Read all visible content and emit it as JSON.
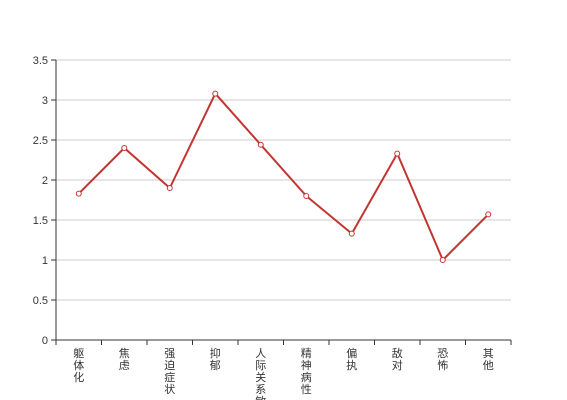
{
  "chart_data": {
    "type": "line",
    "title": "",
    "xlabel": "",
    "ylabel": "",
    "categories": [
      "躯体化",
      "焦虑",
      "强迫症状",
      "抑郁",
      "人际关系敏感",
      "精神病性",
      "偏执",
      "敌对",
      "恐怖",
      "其他"
    ],
    "series": [
      {
        "values": [
          1.83,
          2.4,
          1.9,
          3.08,
          2.44,
          1.8,
          1.33,
          2.33,
          1.0,
          1.57
        ]
      }
    ],
    "ylim": [
      0,
      3.5
    ],
    "yticks": [
      "0",
      "0.5",
      "1",
      "1.5",
      "2",
      "2.5",
      "3",
      "3.5"
    ],
    "grid": true,
    "legend": "none",
    "colors": {
      "line": "#c23531",
      "grid": "#cccccc",
      "axis": "#333333"
    }
  }
}
